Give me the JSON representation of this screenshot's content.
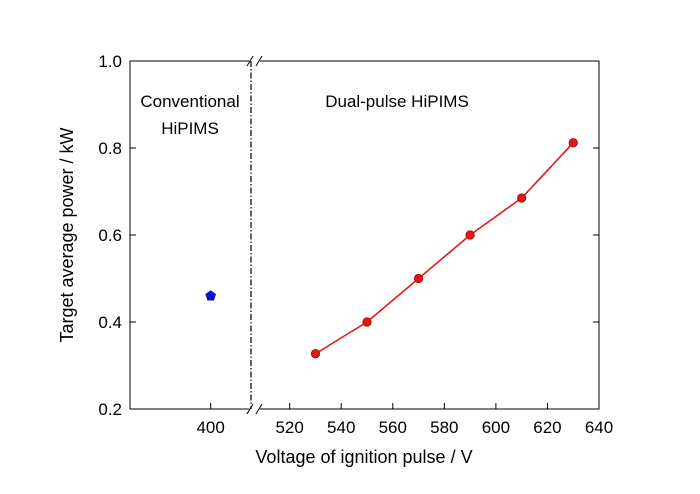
{
  "chart_data": {
    "type": "scatter",
    "xlabel": "Voltage of ignition pulse / V",
    "ylabel": "Target average power / kW",
    "ylim": [
      0.2,
      1.0
    ],
    "y_ticks": [
      "0.2",
      "0.4",
      "0.6",
      "0.8",
      "1.0"
    ],
    "x_axis_broken": true,
    "left_segment": {
      "xlim": [
        380,
        410
      ],
      "x_ticks": [
        "400"
      ],
      "annotation": [
        "Conventional",
        "HiPIMS"
      ],
      "series": [
        {
          "type": "scatter",
          "marker": "pentagon",
          "color": "#0a14c8",
          "x": [
            400
          ],
          "y": [
            0.46
          ]
        }
      ]
    },
    "right_segment": {
      "xlim": [
        505,
        640
      ],
      "x_ticks": [
        "520",
        "540",
        "560",
        "580",
        "600",
        "620",
        "640"
      ],
      "annotation": [
        "Dual-pulse HiPIMS"
      ],
      "series": [
        {
          "type": "line",
          "marker": "circle",
          "color": "#e01919",
          "x": [
            530,
            550,
            570,
            590,
            610,
            630
          ],
          "y": [
            0.327,
            0.4,
            0.5,
            0.6,
            0.685,
            0.812
          ]
        }
      ]
    },
    "grid": false,
    "legend": "none"
  }
}
